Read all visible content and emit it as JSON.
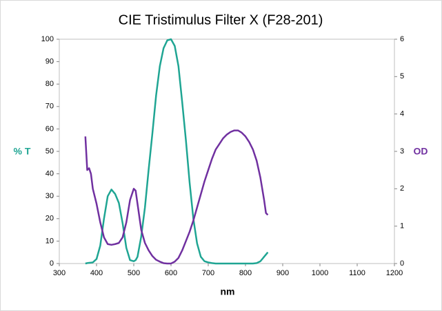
{
  "chart_data": {
    "type": "line",
    "title": "CIE Tristimulus Filter X (F28-201)",
    "x_label": "nm",
    "y_label": "% T",
    "y2_label": "OD",
    "x": [
      370,
      375,
      380,
      385,
      390,
      400,
      410,
      420,
      430,
      440,
      450,
      460,
      470,
      480,
      490,
      500,
      505,
      510,
      520,
      530,
      540,
      550,
      560,
      570,
      580,
      590,
      600,
      610,
      620,
      630,
      640,
      650,
      660,
      670,
      680,
      690,
      700,
      710,
      720,
      730,
      740,
      750,
      760,
      770,
      780,
      790,
      800,
      810,
      820,
      830,
      840,
      850,
      855,
      860
    ],
    "series": [
      {
        "name": "% T",
        "color": "#1fa593",
        "values": [
          0,
          0.2,
          0.3,
          0.4,
          0.5,
          2,
          8,
          20,
          30,
          33,
          31,
          27,
          18,
          7,
          1.5,
          1,
          1.5,
          3,
          12,
          25,
          42,
          58,
          75,
          88,
          96,
          99.5,
          100,
          97,
          88,
          72,
          55,
          36,
          20,
          9,
          3,
          1,
          0.5,
          0.2,
          0,
          0,
          0,
          0,
          0,
          0,
          0,
          0,
          0,
          0,
          0,
          0.2,
          1,
          3,
          4,
          5
        ]
      },
      {
        "name": "OD",
        "color": "#7030a0",
        "axis": "y2",
        "values": [
          3.4,
          2.5,
          2.55,
          2.4,
          2.0,
          1.6,
          1.1,
          0.7,
          0.52,
          0.5,
          0.52,
          0.55,
          0.7,
          1.1,
          1.7,
          2.0,
          1.95,
          1.6,
          0.9,
          0.55,
          0.35,
          0.2,
          0.1,
          0.05,
          0.01,
          0,
          0,
          0.05,
          0.15,
          0.35,
          0.6,
          0.85,
          1.15,
          1.5,
          1.85,
          2.2,
          2.5,
          2.8,
          3.05,
          3.2,
          3.35,
          3.45,
          3.52,
          3.56,
          3.56,
          3.5,
          3.4,
          3.25,
          3.05,
          2.75,
          2.3,
          1.7,
          1.35,
          1.3
        ]
      }
    ],
    "xlim": [
      300,
      1200
    ],
    "xticks": [
      300,
      400,
      500,
      600,
      700,
      800,
      900,
      1000,
      1100,
      1200
    ],
    "ylim": [
      0,
      100
    ],
    "yticks": [
      0,
      10,
      20,
      30,
      40,
      50,
      60,
      70,
      80,
      90,
      100
    ],
    "y2lim": [
      0,
      6
    ],
    "y2ticks": [
      0,
      1,
      2,
      3,
      4,
      5,
      6
    ]
  }
}
